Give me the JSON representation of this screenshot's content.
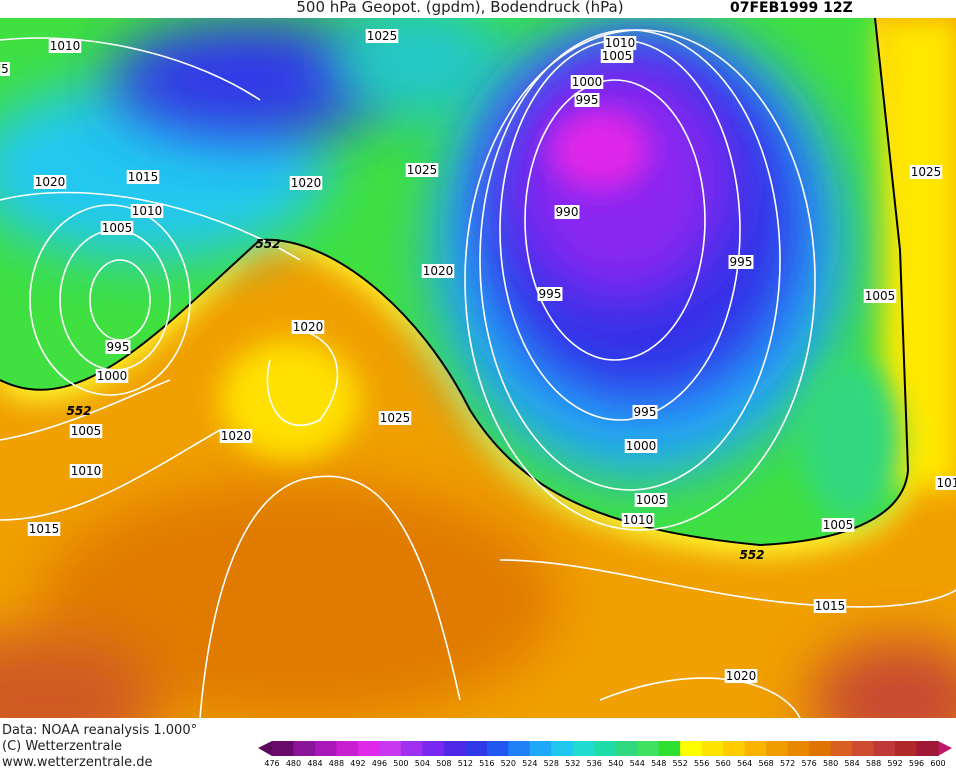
{
  "header": {
    "title": "500 hPa Geopot. (gpdm), Bodendruck (hPa)",
    "date": "07FEB1999 12Z"
  },
  "isobar_labels": [
    "5",
    1010,
    1025,
    1010,
    1005,
    1000,
    995,
    1025,
    1020,
    1015,
    1020,
    1025,
    1010,
    990,
    1005,
    1020,
    995,
    995,
    1005,
    1020,
    995,
    1000,
    1025,
    1020,
    995,
    1005,
    1000,
    1010,
    1005,
    1010,
    1005,
    1015,
    1015,
    1020,
    "101"
  ],
  "contour_labels": [
    552,
    552,
    552
  ],
  "footer": [
    "Data: NOAA reanalysis 1.000°",
    "(C) Wetterzentrale",
    "www.wetterzentrale.de"
  ],
  "colorbar": {
    "ticks": [
      476,
      480,
      484,
      488,
      492,
      496,
      500,
      504,
      508,
      512,
      516,
      520,
      524,
      528,
      532,
      536,
      540,
      544,
      548,
      552,
      556,
      560,
      564,
      568,
      572,
      576,
      580,
      584,
      588,
      592,
      596,
      600
    ],
    "colors": [
      "#6a0a6a",
      "#8a149a",
      "#a818b8",
      "#c820d0",
      "#e028e8",
      "#c838f0",
      "#a030f0",
      "#7828f0",
      "#5028e8",
      "#3038e8",
      "#2058f0",
      "#2080f8",
      "#20a8f8",
      "#20c8f0",
      "#20dcd0",
      "#20dca8",
      "#30d880",
      "#40e060",
      "#30e030",
      "#ffff00",
      "#ffe400",
      "#ffcc00",
      "#f8b400",
      "#f09c00",
      "#e88800",
      "#e07400",
      "#d86020",
      "#cc4c30",
      "#c03838",
      "#b02828",
      "#a01838"
    ]
  }
}
